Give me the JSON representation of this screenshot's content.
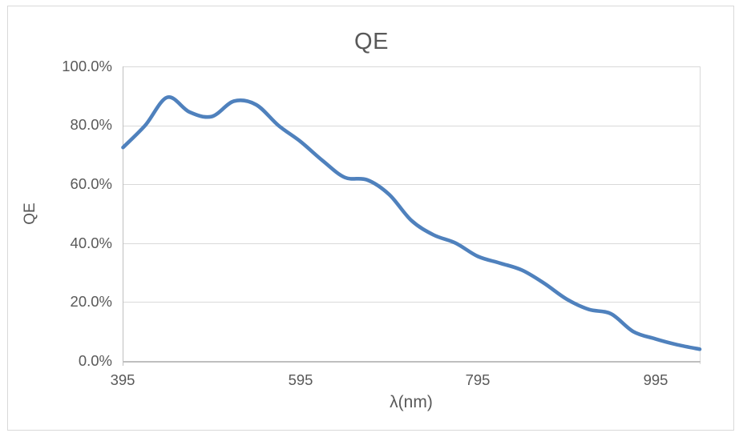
{
  "chart": {
    "title": "QE",
    "y_axis_title": "QE",
    "x_axis_title": "λ(nm)"
  },
  "chart_data": {
    "type": "line",
    "title": "QE",
    "xlabel": "λ(nm)",
    "ylabel": "QE",
    "smooth": true,
    "grid": "horizontal",
    "legend": "none",
    "line_color": "#4F81BD",
    "x_range": [
      395,
      1045
    ],
    "y_range_percent": [
      0,
      100
    ],
    "y_tick_step_percent": 20,
    "x_tick_values": [
      395,
      595,
      795,
      995
    ],
    "x_tick_labels": [
      "395",
      "595",
      "795",
      "995"
    ],
    "y_tick_labels": [
      "100.0%",
      "80.0%",
      "60.0%",
      "40.0%",
      "20.0%",
      "0.0%"
    ],
    "x": [
      395,
      420,
      445,
      470,
      495,
      520,
      545,
      570,
      595,
      620,
      645,
      670,
      695,
      720,
      745,
      770,
      795,
      820,
      845,
      870,
      895,
      920,
      945,
      970,
      995,
      1020,
      1045
    ],
    "qe_percent": [
      72.5,
      80.0,
      89.5,
      84.5,
      83.0,
      88.2,
      87.0,
      80.0,
      74.5,
      68.0,
      62.3,
      61.5,
      56.5,
      47.7,
      42.8,
      40.0,
      35.5,
      33.2,
      30.8,
      26.3,
      21.0,
      17.5,
      16.0,
      10.0,
      7.5,
      5.5,
      4.0
    ]
  },
  "colors": {
    "line": "#4F81BD",
    "text": "#595959",
    "gridline": "#d9d9d9",
    "axis": "#bfbfbf",
    "chart_border": "#d9d9d9",
    "background": "#ffffff"
  }
}
